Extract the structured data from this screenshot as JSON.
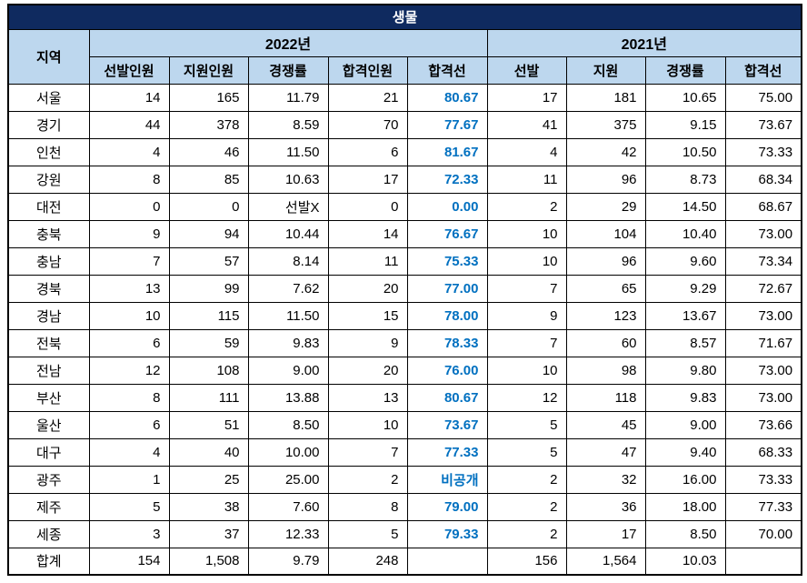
{
  "title": "생물",
  "colors": {
    "title_bg": "#0f2a5f",
    "header_bg": "#bdd7ee",
    "cutoff_blue": "#0070c0",
    "border": "#000000"
  },
  "header": {
    "region": "지역",
    "y2022": "2022년",
    "y2021": "2021년",
    "cols_2022": [
      "선발인원",
      "지원인원",
      "경쟁률",
      "합격인원",
      "합격선"
    ],
    "cols_2021": [
      "선발",
      "지원",
      "경쟁률",
      "합격선"
    ]
  },
  "rows": [
    {
      "region": "서울",
      "values": [
        "14",
        "165",
        "11.79",
        "21",
        "80.67",
        "17",
        "181",
        "10.65",
        "75.00"
      ]
    },
    {
      "region": "경기",
      "values": [
        "44",
        "378",
        "8.59",
        "70",
        "77.67",
        "41",
        "375",
        "9.15",
        "73.67"
      ]
    },
    {
      "region": "인천",
      "values": [
        "4",
        "46",
        "11.50",
        "6",
        "81.67",
        "4",
        "42",
        "10.50",
        "73.33"
      ]
    },
    {
      "region": "강원",
      "values": [
        "8",
        "85",
        "10.63",
        "17",
        "72.33",
        "11",
        "96",
        "8.73",
        "68.34"
      ]
    },
    {
      "region": "대전",
      "values": [
        "0",
        "0",
        "선발X",
        "0",
        "0.00",
        "2",
        "29",
        "14.50",
        "68.67"
      ]
    },
    {
      "region": "충북",
      "values": [
        "9",
        "94",
        "10.44",
        "14",
        "76.67",
        "10",
        "104",
        "10.40",
        "73.00"
      ]
    },
    {
      "region": "충남",
      "values": [
        "7",
        "57",
        "8.14",
        "11",
        "75.33",
        "10",
        "96",
        "9.60",
        "73.34"
      ]
    },
    {
      "region": "경북",
      "values": [
        "13",
        "99",
        "7.62",
        "20",
        "77.00",
        "7",
        "65",
        "9.29",
        "72.67"
      ]
    },
    {
      "region": "경남",
      "values": [
        "10",
        "115",
        "11.50",
        "15",
        "78.00",
        "9",
        "123",
        "13.67",
        "73.00"
      ]
    },
    {
      "region": "전북",
      "values": [
        "6",
        "59",
        "9.83",
        "9",
        "78.33",
        "7",
        "60",
        "8.57",
        "71.67"
      ]
    },
    {
      "region": "전남",
      "values": [
        "12",
        "108",
        "9.00",
        "20",
        "76.00",
        "10",
        "98",
        "9.80",
        "73.00"
      ]
    },
    {
      "region": "부산",
      "values": [
        "8",
        "111",
        "13.88",
        "13",
        "80.67",
        "12",
        "118",
        "9.83",
        "73.00"
      ]
    },
    {
      "region": "울산",
      "values": [
        "6",
        "51",
        "8.50",
        "10",
        "73.67",
        "5",
        "45",
        "9.00",
        "73.66"
      ]
    },
    {
      "region": "대구",
      "values": [
        "4",
        "40",
        "10.00",
        "7",
        "77.33",
        "5",
        "47",
        "9.40",
        "68.33"
      ]
    },
    {
      "region": "광주",
      "values": [
        "1",
        "25",
        "25.00",
        "2",
        "비공개",
        "2",
        "32",
        "16.00",
        "73.33"
      ]
    },
    {
      "region": "제주",
      "values": [
        "5",
        "38",
        "7.60",
        "8",
        "79.00",
        "2",
        "36",
        "18.00",
        "77.33"
      ]
    },
    {
      "region": "세종",
      "values": [
        "3",
        "37",
        "12.33",
        "5",
        "79.33",
        "2",
        "17",
        "8.50",
        "70.00"
      ]
    },
    {
      "region": "합계",
      "values": [
        "154",
        "1,508",
        "9.79",
        "248",
        "",
        "156",
        "1,564",
        "10.03",
        ""
      ]
    }
  ]
}
